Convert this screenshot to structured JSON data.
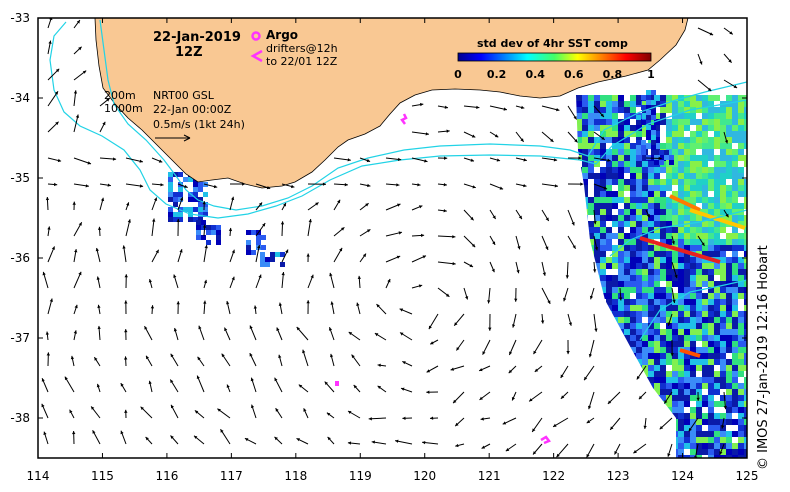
{
  "map": {
    "date": "22-Jan-2019",
    "time": "12Z",
    "argo_label": "Argo",
    "drifter_line1": "drifters@12h",
    "drifter_line2": "to 22/01 12Z",
    "colorbar_title": "std dev of 4hr SST comp",
    "colorbar_ticks": [
      "0",
      "0.2",
      "0.4",
      "0.6",
      "0.8",
      "1"
    ],
    "isobath_200": "200m",
    "isobath_1000": "1000m",
    "product": "NRT00 GSL",
    "analysis_time": "22-Jan 00:00Z",
    "scale_label": "0.5m/s (1kt 24h)",
    "lon_ticks": [
      "114",
      "115",
      "116",
      "117",
      "118",
      "119",
      "120",
      "121",
      "122",
      "123",
      "124",
      "125"
    ],
    "lat_ticks": [
      "-33",
      "-34",
      "-35",
      "-36",
      "-37",
      "-38"
    ],
    "credit": "© IMOS 27-Jan-2019 12:16 Hobart",
    "colors": {
      "land": "#f9c893",
      "isobath": "#22d3e6",
      "argo": "#ff33ff",
      "drifter": "#ff33ff",
      "arrow": "#000000"
    }
  }
}
